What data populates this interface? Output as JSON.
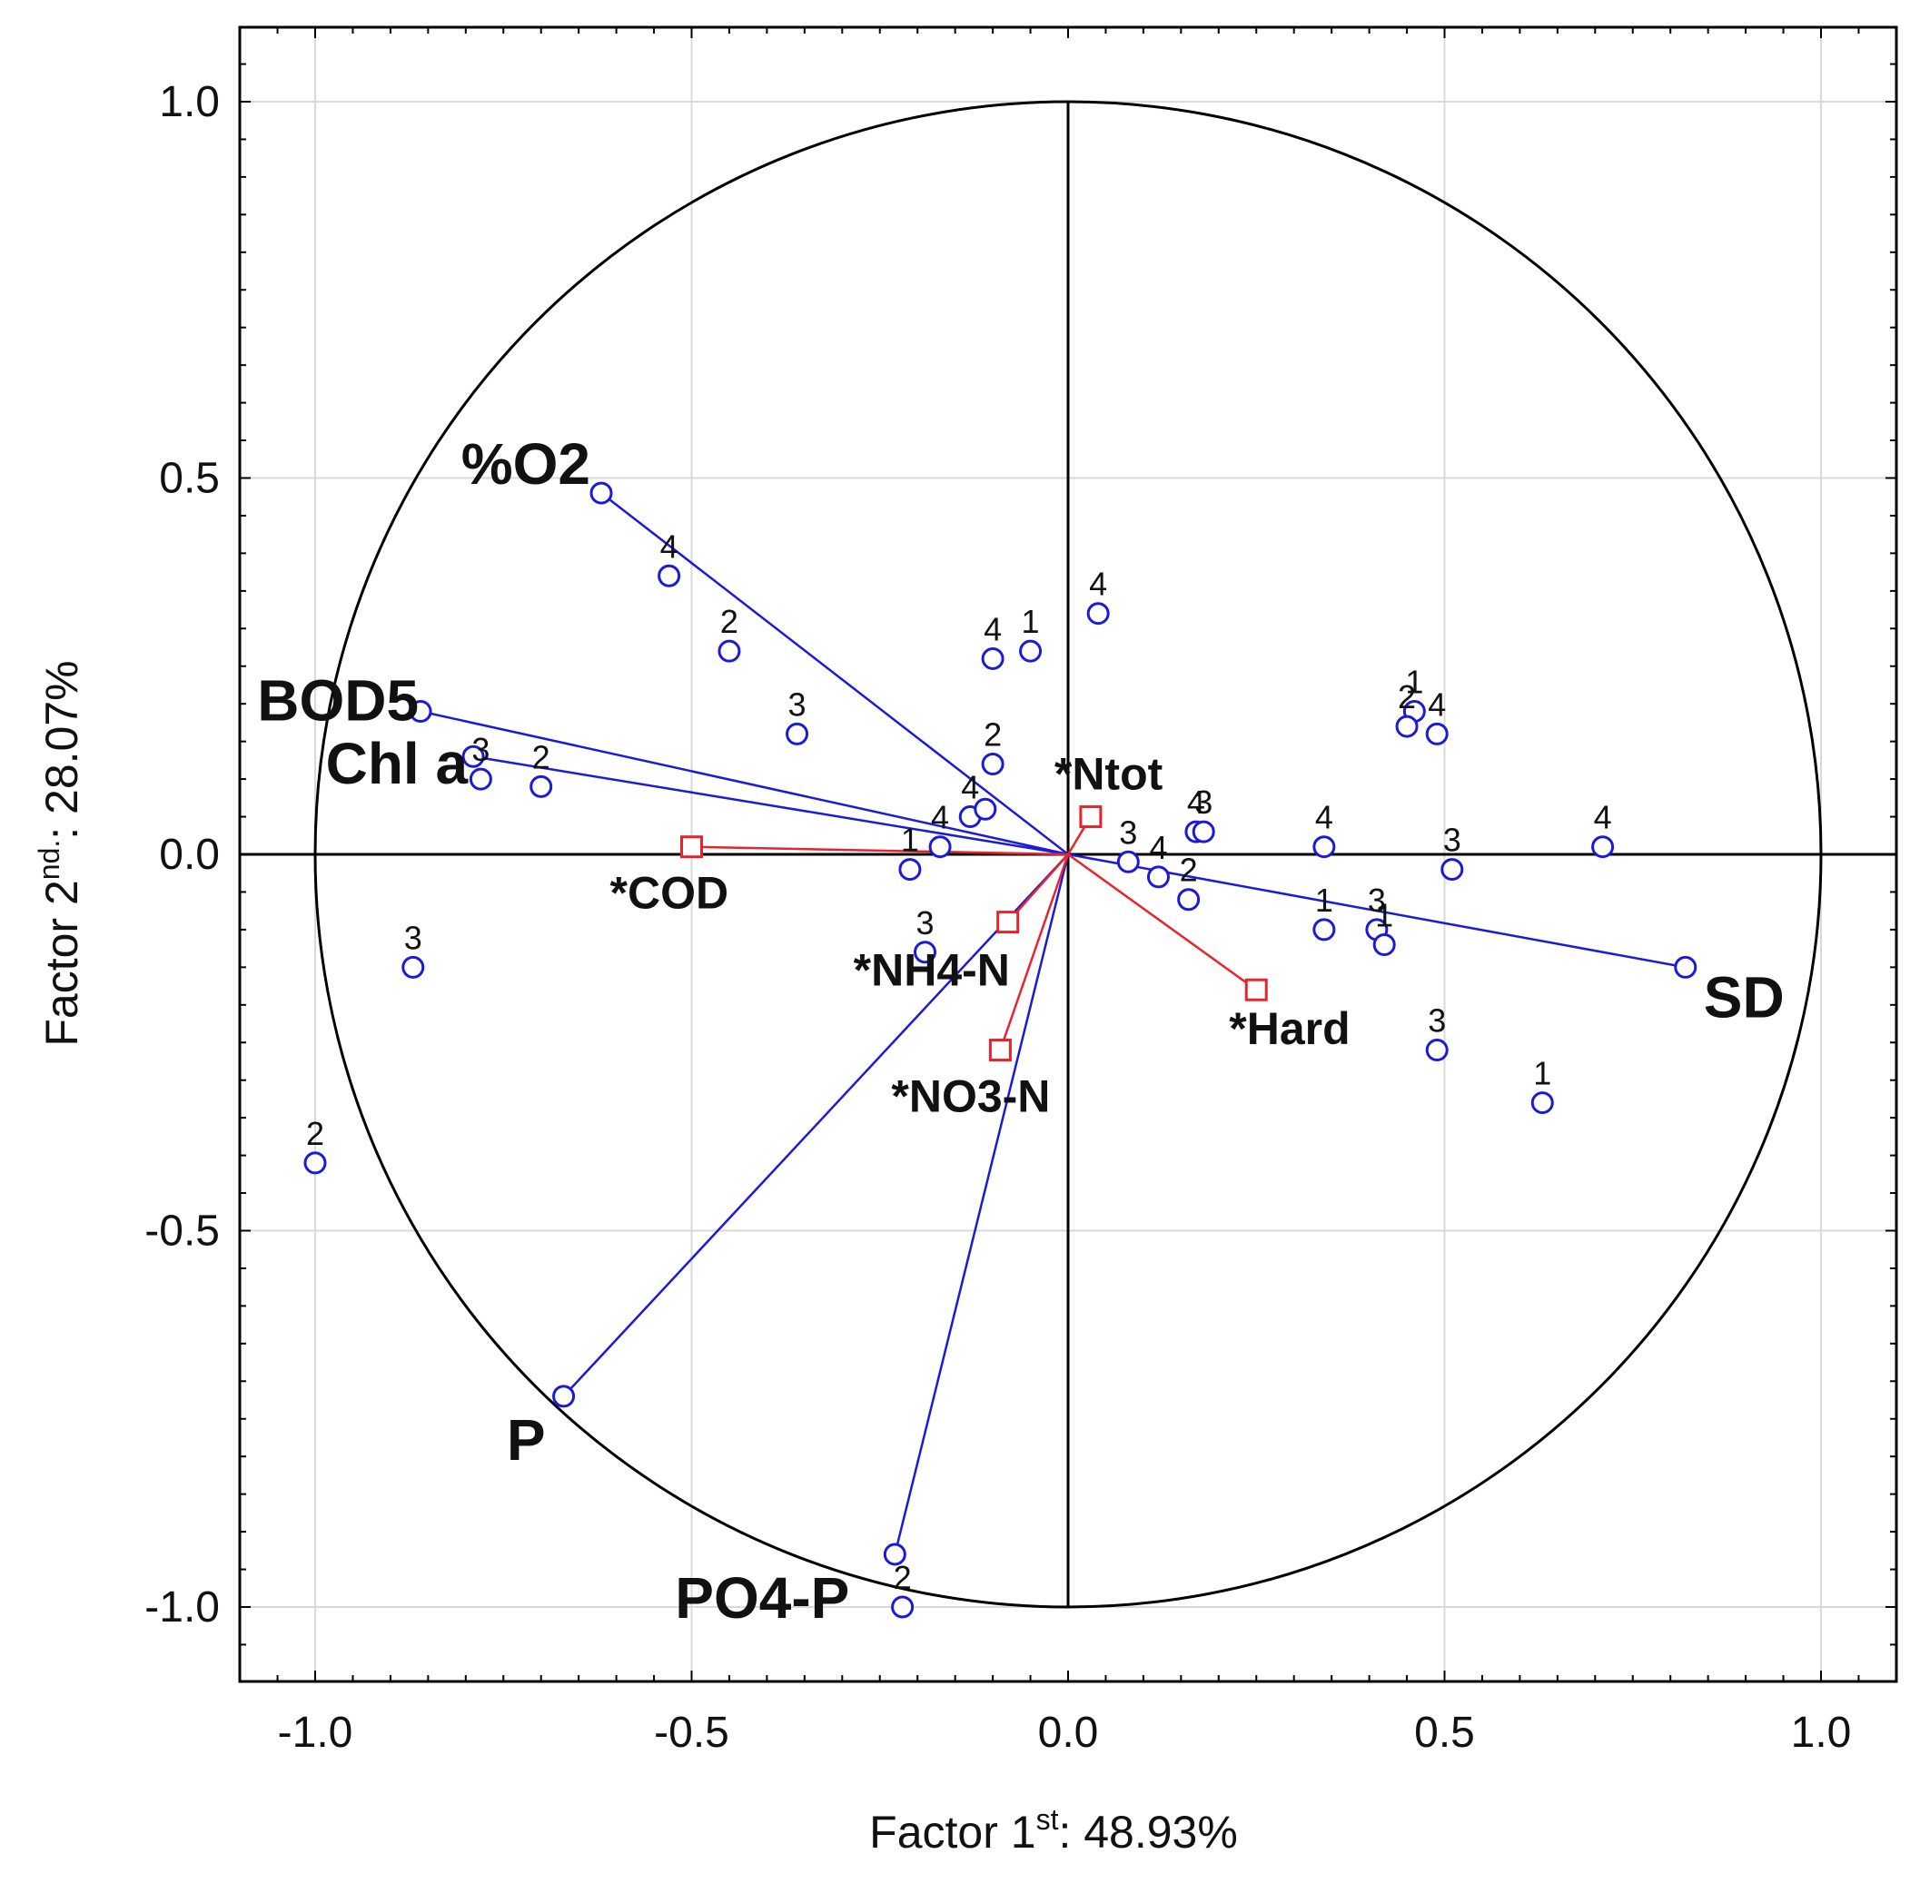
{
  "chart_data": {
    "type": "scatter",
    "subtype": "pca-factor-loadings-with-cases",
    "xlabel": {
      "main": "Factor 1",
      "sup": "st",
      "tail": ": 48.93%"
    },
    "ylabel": {
      "main": "Factor 2",
      "sup": "nd.",
      "tail": ": 28.07%"
    },
    "xlim": [
      -1.1,
      1.1
    ],
    "ylim": [
      -1.1,
      1.1
    ],
    "xticks": [
      -1.0,
      -0.5,
      0.0,
      0.5,
      1.0
    ],
    "yticks": [
      -1.0,
      -0.5,
      0.0,
      0.5,
      1.0
    ],
    "xtick_labels": [
      "-1.0",
      "-0.5",
      "0.0",
      "0.5",
      "1.0"
    ],
    "ytick_labels": [
      "-1.0",
      "-0.5",
      "0.0",
      "0.5",
      "1.0"
    ],
    "grid": true,
    "unit_circle": true,
    "colors": {
      "active": "#1a1adb",
      "supplementary": "#e8232b",
      "axis": "#000000",
      "grid": "#d9d9d9"
    },
    "active_variables": [
      {
        "name": "%O2",
        "x": -0.62,
        "y": 0.48
      },
      {
        "name": "BOD5",
        "x": -0.86,
        "y": 0.19
      },
      {
        "name": "Chl a",
        "x": -0.79,
        "y": 0.13
      },
      {
        "name": "SD",
        "x": 0.82,
        "y": -0.15
      },
      {
        "name": "P",
        "x": -0.67,
        "y": -0.72
      },
      {
        "name": "PO4-P",
        "x": -0.23,
        "y": -0.93
      }
    ],
    "supplementary_variables": [
      {
        "name": "*Ntot",
        "x": 0.03,
        "y": 0.05
      },
      {
        "name": "*COD",
        "x": -0.5,
        "y": 0.01
      },
      {
        "name": "*NH4-N",
        "x": -0.08,
        "y": -0.09
      },
      {
        "name": "*NO3-N",
        "x": -0.09,
        "y": -0.26
      },
      {
        "name": "*Hard",
        "x": 0.25,
        "y": -0.18
      }
    ],
    "cases": [
      {
        "label": "4",
        "x": -0.53,
        "y": 0.37
      },
      {
        "label": "2",
        "x": -0.45,
        "y": 0.27
      },
      {
        "label": "3",
        "x": -0.36,
        "y": 0.16
      },
      {
        "label": "4",
        "x": -0.1,
        "y": 0.26
      },
      {
        "label": "1",
        "x": -0.05,
        "y": 0.27
      },
      {
        "label": "4",
        "x": 0.04,
        "y": 0.32
      },
      {
        "label": "2",
        "x": -0.1,
        "y": 0.12
      },
      {
        "label": "4",
        "x": -0.13,
        "y": 0.05
      },
      {
        "label": "",
        "x": -0.11,
        "y": 0.06
      },
      {
        "label": "4",
        "x": -0.17,
        "y": 0.01
      },
      {
        "label": "1",
        "x": -0.21,
        "y": -0.02
      },
      {
        "label": "3",
        "x": -0.19,
        "y": -0.13
      },
      {
        "label": "3",
        "x": -0.78,
        "y": 0.1
      },
      {
        "label": "2",
        "x": -0.7,
        "y": 0.09
      },
      {
        "label": "3",
        "x": -0.87,
        "y": -0.15
      },
      {
        "label": "2",
        "x": -1.0,
        "y": -0.41
      },
      {
        "label": "2",
        "x": -0.22,
        "y": -1.0
      },
      {
        "label": "1",
        "x": 0.46,
        "y": 0.19
      },
      {
        "label": "2",
        "x": 0.45,
        "y": 0.17
      },
      {
        "label": "4",
        "x": 0.49,
        "y": 0.16
      },
      {
        "label": "4",
        "x": 0.17,
        "y": 0.03
      },
      {
        "label": "3",
        "x": 0.18,
        "y": 0.03
      },
      {
        "label": "4",
        "x": 0.34,
        "y": 0.01
      },
      {
        "label": "3",
        "x": 0.51,
        "y": -0.02
      },
      {
        "label": "4",
        "x": 0.71,
        "y": 0.01
      },
      {
        "label": "3",
        "x": 0.08,
        "y": -0.01
      },
      {
        "label": "4",
        "x": 0.12,
        "y": -0.03
      },
      {
        "label": "2",
        "x": 0.16,
        "y": -0.06
      },
      {
        "label": "1",
        "x": 0.34,
        "y": -0.1
      },
      {
        "label": "3",
        "x": 0.41,
        "y": -0.1
      },
      {
        "label": "1",
        "x": 0.42,
        "y": -0.12
      },
      {
        "label": "3",
        "x": 0.49,
        "y": -0.26
      },
      {
        "label": "1",
        "x": 0.63,
        "y": -0.33
      }
    ]
  }
}
